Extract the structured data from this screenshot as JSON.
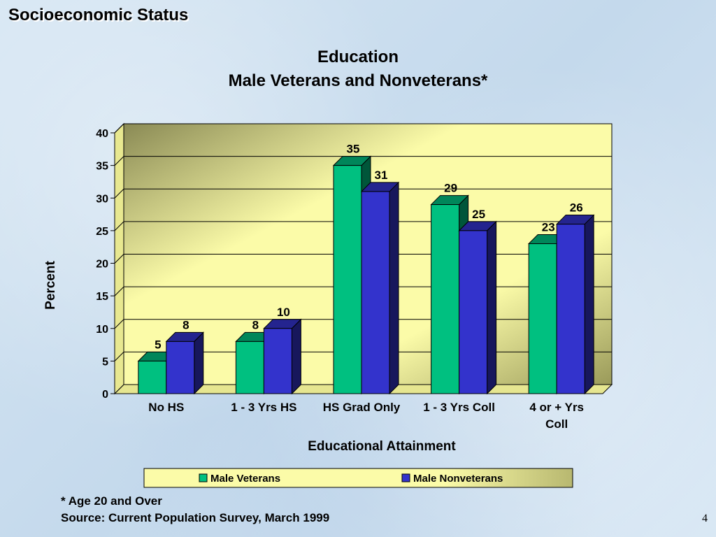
{
  "slide": {
    "title": "Socioeconomic Status",
    "footnote": "* Age 20 and Over",
    "source": "Source:  Current Population Survey, March 1999",
    "page_number": "4"
  },
  "colors": {
    "veterans": "#00c080",
    "nonveterans": "#3333cc",
    "plot_background": "#fbfba8",
    "legend_background": "#fbfba8"
  },
  "chart_data": {
    "type": "bar",
    "title": [
      "Education",
      "Male Veterans and Nonveterans*"
    ],
    "xlabel": "Educational Attainment",
    "ylabel": "Percent",
    "ylim": [
      0,
      40
    ],
    "yticks": [
      0,
      5,
      10,
      15,
      20,
      25,
      30,
      35,
      40
    ],
    "grid": true,
    "legend_position": "bottom",
    "categories": [
      [
        "No HS"
      ],
      [
        "1 - 3 Yrs HS"
      ],
      [
        "HS Grad Only"
      ],
      [
        "1 - 3 Yrs Coll"
      ],
      [
        "4 or + Yrs",
        "Coll"
      ]
    ],
    "series": [
      {
        "name": "Male Veterans",
        "values": [
          5,
          8,
          35,
          29,
          23
        ]
      },
      {
        "name": "Male Nonveterans",
        "values": [
          8,
          10,
          31,
          25,
          26
        ]
      }
    ]
  }
}
